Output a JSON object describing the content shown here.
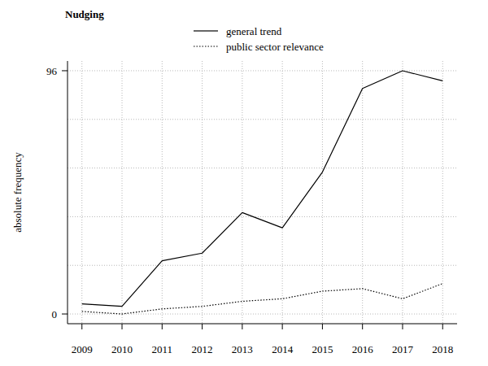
{
  "chart_data": {
    "type": "line",
    "title": "Nudging",
    "y_label": "absolute frequency",
    "x": [
      2009,
      2010,
      2011,
      2012,
      2013,
      2014,
      2015,
      2016,
      2017,
      2018
    ],
    "series": [
      {
        "name": "general trend",
        "color": "#000000",
        "line_style": "solid",
        "values": [
          4,
          3,
          21,
          24,
          40,
          34,
          56,
          89,
          96,
          92
        ]
      },
      {
        "name": "public sector relevance",
        "color": "#000000",
        "line_style": "dotted",
        "values": [
          1,
          0,
          2,
          3,
          5,
          6,
          9,
          10,
          6,
          12
        ]
      }
    ],
    "xlim": [
      2008.64,
      2018.36
    ],
    "xticks": [
      2009,
      2010,
      2011,
      2012,
      2013,
      2014,
      2015,
      2016,
      2017,
      2018
    ],
    "ylim": [
      -3.84,
      99.84
    ],
    "yticks": [
      0,
      {
        "value": 19.2,
        "label": null
      },
      {
        "value": 38.4,
        "label": null
      },
      {
        "value": 57.6,
        "label": null
      },
      {
        "value": 76.8,
        "label": null
      },
      96
    ],
    "grid": true,
    "legend": "top"
  }
}
